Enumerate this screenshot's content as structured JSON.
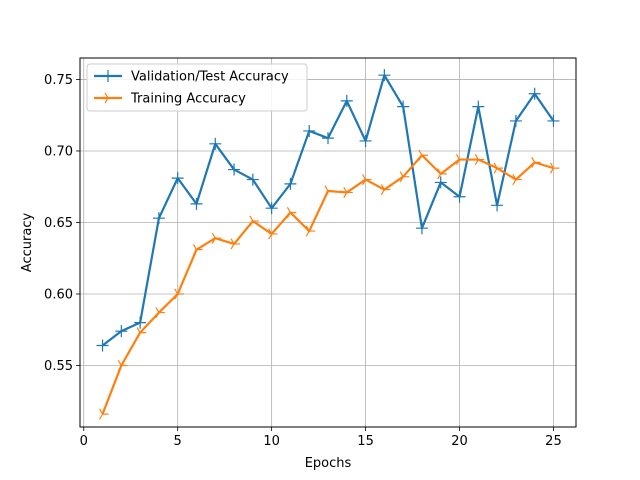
{
  "chart_data": {
    "type": "line",
    "title": "",
    "xlabel": "Epochs",
    "ylabel": "Accuracy",
    "xlim": [
      -0.2,
      26.2
    ],
    "ylim": [
      0.507,
      0.765
    ],
    "xticks": [
      0,
      5,
      10,
      15,
      20,
      25
    ],
    "yticks": [
      0.55,
      0.6,
      0.65,
      0.7,
      0.75
    ],
    "x_tick_labels": [
      "0",
      "5",
      "10",
      "15",
      "20",
      "25"
    ],
    "y_tick_labels": [
      "0.55",
      "0.60",
      "0.65",
      "0.70",
      "0.75"
    ],
    "grid": true,
    "legend_position": "upper-left",
    "x": [
      1,
      2,
      3,
      4,
      5,
      6,
      7,
      8,
      9,
      10,
      11,
      12,
      13,
      14,
      15,
      16,
      17,
      18,
      19,
      20,
      21,
      22,
      23,
      24,
      25
    ],
    "series": [
      {
        "name": "Validation/Test Accuracy",
        "color": "#1f77b4",
        "marker": "plus",
        "values": [
          0.564,
          0.574,
          0.58,
          0.653,
          0.681,
          0.663,
          0.705,
          0.687,
          0.68,
          0.66,
          0.677,
          0.714,
          0.709,
          0.735,
          0.707,
          0.753,
          0.731,
          0.646,
          0.678,
          0.668,
          0.731,
          0.662,
          0.721,
          0.74,
          0.721
        ]
      },
      {
        "name": "Training Accuracy",
        "color": "#ff7f0e",
        "marker": "tri-right",
        "values": [
          0.516,
          0.55,
          0.573,
          0.587,
          0.6,
          0.631,
          0.639,
          0.635,
          0.651,
          0.642,
          0.657,
          0.644,
          0.672,
          0.671,
          0.68,
          0.673,
          0.682,
          0.697,
          0.684,
          0.694,
          0.694,
          0.688,
          0.68,
          0.692,
          0.688
        ]
      }
    ]
  }
}
